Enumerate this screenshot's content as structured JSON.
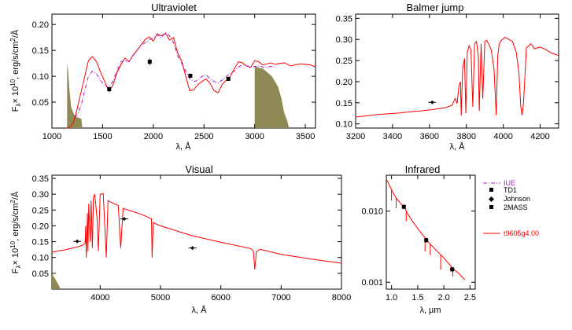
{
  "colors": {
    "model": "#ff0000",
    "iue": "#a020c0",
    "shade": "#8f8a55",
    "marker": "#000000",
    "axis": "#000000"
  },
  "chart_data": [
    {
      "id": "uv",
      "type": "line",
      "title": "Ultraviolet",
      "xlabel": "λ, Å",
      "ylabel": "F_λ × 10^10 , erg/s/cm²/Å",
      "ylabel_parts": {
        "base": "F",
        "sub": "λ",
        "mid": "× 10",
        "sup10": "10",
        "unit": ", erg/s/cm",
        "sup2": "2",
        "tail": "/Å"
      },
      "xlim": [
        1000,
        3600
      ],
      "ylim": [
        0.0,
        0.22
      ],
      "xticks": [
        1000,
        1500,
        2000,
        2500,
        3000,
        3500
      ],
      "yticks": [
        0.05,
        0.1,
        0.15,
        0.2
      ],
      "series": [
        {
          "name": "t9605g4.00",
          "style": "solid",
          "color": "#ff0000",
          "x": [
            1150,
            1180,
            1210,
            1240,
            1270,
            1300,
            1330,
            1360,
            1400,
            1440,
            1480,
            1520,
            1560,
            1600,
            1640,
            1680,
            1720,
            1760,
            1800,
            1840,
            1880,
            1920,
            1960,
            2000,
            2040,
            2080,
            2120,
            2160,
            2200,
            2240,
            2280,
            2320,
            2360,
            2400,
            2440,
            2480,
            2520,
            2560,
            2600,
            2640,
            2680,
            2720,
            2760,
            2800,
            2840,
            2880,
            2920,
            2960,
            3000,
            3040,
            3080,
            3120,
            3160,
            3200,
            3250,
            3300,
            3350,
            3400,
            3450,
            3500,
            3550,
            3600
          ],
          "y": [
            0.0,
            0.002,
            0.01,
            0.03,
            0.055,
            0.08,
            0.105,
            0.13,
            0.138,
            0.128,
            0.108,
            0.09,
            0.072,
            0.082,
            0.106,
            0.122,
            0.135,
            0.128,
            0.141,
            0.15,
            0.161,
            0.171,
            0.176,
            0.168,
            0.182,
            0.178,
            0.183,
            0.17,
            0.175,
            0.145,
            0.13,
            0.1,
            0.072,
            0.074,
            0.084,
            0.09,
            0.095,
            0.086,
            0.072,
            0.068,
            0.085,
            0.092,
            0.1,
            0.115,
            0.128,
            0.126,
            0.12,
            0.117,
            0.13,
            0.128,
            0.122,
            0.124,
            0.126,
            0.123,
            0.125,
            0.126,
            0.12,
            0.122,
            0.124,
            0.123,
            0.122,
            0.118
          ]
        },
        {
          "name": "IUE",
          "style": "dashdot",
          "color": "#a020c0",
          "x": [
            1230,
            1260,
            1290,
            1320,
            1360,
            1400,
            1440,
            1480,
            1520,
            1560,
            1600,
            1640,
            1680,
            1720,
            1760,
            1800,
            1840,
            1880,
            1920,
            1960,
            2000,
            2040,
            2080,
            2120,
            2160,
            2200,
            2240,
            2280,
            2320,
            2360,
            2400,
            2440,
            2480,
            2520,
            2560,
            2600,
            2640,
            2680,
            2720,
            2760,
            2800,
            2840,
            2880,
            2920,
            2960,
            3000,
            3040,
            3080,
            3120,
            3160,
            3200
          ],
          "y": [
            0.02,
            0.03,
            0.045,
            0.07,
            0.1,
            0.11,
            0.105,
            0.092,
            0.082,
            0.078,
            0.09,
            0.11,
            0.128,
            0.13,
            0.128,
            0.14,
            0.15,
            0.16,
            0.165,
            0.17,
            0.175,
            0.18,
            0.175,
            0.185,
            0.178,
            0.165,
            0.14,
            0.125,
            0.11,
            0.095,
            0.09,
            0.092,
            0.1,
            0.103,
            0.095,
            0.09,
            0.087,
            0.093,
            0.1,
            0.105,
            0.11,
            0.118,
            0.122,
            0.12,
            0.118,
            0.119,
            0.12,
            0.118,
            0.118,
            0.119,
            0.118
          ]
        }
      ],
      "shaded": [
        {
          "x": [
            1150,
            1160,
            1175,
            1190,
            1210,
            1230,
            1260,
            1290,
            1300
          ],
          "y": [
            0.125,
            0.11,
            0.07,
            0.04,
            0.03,
            0.022,
            0.02,
            0.018,
            0.0
          ]
        },
        {
          "x": [
            3000,
            3020,
            3050,
            3080,
            3110,
            3140,
            3170,
            3200,
            3230,
            3260,
            3290,
            3320,
            3340
          ],
          "y": [
            0.12,
            0.118,
            0.116,
            0.115,
            0.11,
            0.105,
            0.1,
            0.09,
            0.08,
            0.06,
            0.03,
            0.015,
            0.0
          ]
        }
      ],
      "points": [
        {
          "x": 1565,
          "y": 0.075,
          "err": 0.005,
          "marker": "square",
          "label": "TD1"
        },
        {
          "x": 1965,
          "y": 0.128,
          "err": 0.006,
          "marker": "square",
          "label": "TD1"
        },
        {
          "x": 2365,
          "y": 0.101,
          "err": 0.004,
          "marker": "square",
          "label": "TD1"
        },
        {
          "x": 2740,
          "y": 0.095,
          "err": 0.004,
          "marker": "square",
          "label": "TD1"
        }
      ]
    },
    {
      "id": "balmer",
      "type": "line",
      "title": "Balmer jump",
      "xlabel": "λ, Å",
      "ylabel": "",
      "xlim": [
        3200,
        4300
      ],
      "ylim": [
        0.09,
        0.36
      ],
      "xticks": [
        3200,
        3400,
        3600,
        3800,
        4000,
        4200
      ],
      "yticks": [
        0.1,
        0.15,
        0.2,
        0.25,
        0.3,
        0.35
      ],
      "series": [
        {
          "name": "t9605g4.00",
          "style": "solid",
          "color": "#ff0000",
          "x": [
            3200,
            3260,
            3320,
            3380,
            3440,
            3500,
            3560,
            3620,
            3650,
            3680,
            3710,
            3725,
            3730,
            3740,
            3750,
            3760,
            3768,
            3772,
            3780,
            3790,
            3797,
            3805,
            3815,
            3825,
            3835,
            3845,
            3855,
            3865,
            3870,
            3880,
            3889,
            3900,
            3910,
            3920,
            3935,
            3950,
            3962,
            3970,
            3978,
            3990,
            4010,
            4030,
            4050,
            4070,
            4085,
            4095,
            4102,
            4110,
            4125,
            4150,
            4170,
            4200,
            4230,
            4260,
            4300
          ],
          "y": [
            0.116,
            0.119,
            0.122,
            0.124,
            0.126,
            0.129,
            0.131,
            0.134,
            0.136,
            0.138,
            0.142,
            0.145,
            0.152,
            0.16,
            0.148,
            0.19,
            0.2,
            0.12,
            0.23,
            0.255,
            0.125,
            0.27,
            0.285,
            0.275,
            0.14,
            0.29,
            0.295,
            0.26,
            0.13,
            0.29,
            0.16,
            0.295,
            0.298,
            0.29,
            0.275,
            0.23,
            0.12,
            0.26,
            0.29,
            0.298,
            0.305,
            0.3,
            0.295,
            0.27,
            0.22,
            0.14,
            0.12,
            0.15,
            0.28,
            0.29,
            0.278,
            0.282,
            0.276,
            0.268,
            0.262
          ]
        }
      ],
      "shaded": [],
      "points": [
        {
          "x": 3615,
          "y": 0.151,
          "err": 0.002,
          "marker": "diamond",
          "label": "Johnson"
        }
      ]
    },
    {
      "id": "visual",
      "type": "line",
      "title": "Visual",
      "xlabel": "λ, Å",
      "ylabel": "F_λ × 10^10 , erg/s/cm²/Å",
      "ylabel_parts": {
        "base": "F",
        "sub": "λ",
        "mid": "× 10",
        "sup10": "10",
        "unit": ", erg/s/cm",
        "sup2": "2",
        "tail": "/Å"
      },
      "xlim": [
        3200,
        8000
      ],
      "ylim": [
        0.0,
        0.36
      ],
      "xticks": [
        4000,
        5000,
        6000,
        7000,
        8000
      ],
      "yticks": [
        0.05,
        0.1,
        0.15,
        0.2,
        0.25,
        0.3,
        0.35
      ],
      "series": [
        {
          "name": "t9605g4.00",
          "style": "solid",
          "color": "#ff0000",
          "x": [
            3200,
            3400,
            3600,
            3700,
            3750,
            3760,
            3770,
            3790,
            3797,
            3810,
            3835,
            3850,
            3870,
            3889,
            3910,
            3950,
            3970,
            4000,
            4050,
            4101,
            4130,
            4200,
            4300,
            4340,
            4380,
            4500,
            4700,
            4850,
            4861,
            4880,
            5000,
            5500,
            6000,
            6500,
            6540,
            6563,
            6590,
            6650,
            7000,
            7500,
            8000
          ],
          "y": [
            0.117,
            0.124,
            0.132,
            0.138,
            0.145,
            0.2,
            0.1,
            0.24,
            0.12,
            0.27,
            0.15,
            0.28,
            0.13,
            0.29,
            0.3,
            0.22,
            0.12,
            0.3,
            0.302,
            0.1,
            0.28,
            0.272,
            0.265,
            0.13,
            0.255,
            0.248,
            0.235,
            0.222,
            0.1,
            0.21,
            0.2,
            0.17,
            0.148,
            0.128,
            0.12,
            0.062,
            0.118,
            0.126,
            0.11,
            0.095,
            0.082
          ]
        }
      ],
      "shaded": [
        {
          "x": [
            3200,
            3230,
            3260,
            3290,
            3320,
            3340
          ],
          "y": [
            0.05,
            0.04,
            0.03,
            0.02,
            0.01,
            0.0
          ]
        }
      ],
      "points": [
        {
          "x": 3620,
          "y": 0.151,
          "err": 0.003,
          "marker": "diamond",
          "label": "Johnson"
        },
        {
          "x": 4400,
          "y": 0.222,
          "err": 0.003,
          "marker": "diamond",
          "label": "Johnson"
        },
        {
          "x": 5530,
          "y": 0.13,
          "err": 0.002,
          "marker": "diamond",
          "label": "Johnson"
        }
      ]
    },
    {
      "id": "infrared",
      "type": "line",
      "title": "Infrared",
      "xlabel": "λ, µm",
      "ylabel": "",
      "yscale": "log",
      "xlim": [
        0.9,
        2.6
      ],
      "ylim": [
        0.0008,
        0.032
      ],
      "xticks": [
        1.0,
        1.5,
        2.0,
        2.5
      ],
      "xticklabels": [
        "1.0",
        "1.5",
        "2.0",
        "2.5"
      ],
      "yticks": [
        0.001,
        0.01
      ],
      "yticklabels": [
        "0.001",
        "0.010"
      ],
      "series": [
        {
          "name": "t9605g4.00",
          "style": "solid",
          "color": "#ff0000",
          "x": [
            0.9,
            0.95,
            1.0,
            1.05,
            1.1,
            1.15,
            1.2,
            1.25,
            1.3,
            1.35,
            1.4,
            1.45,
            1.5,
            1.6,
            1.7,
            1.8,
            1.9,
            2.0,
            2.1,
            2.2,
            2.3,
            2.4
          ],
          "y": [
            0.028,
            0.024,
            0.02,
            0.017,
            0.015,
            0.0135,
            0.0122,
            0.0112,
            0.0094,
            0.0082,
            0.0072,
            0.0064,
            0.0057,
            0.0046,
            0.0037,
            0.0031,
            0.0026,
            0.0022,
            0.0018,
            0.0015,
            0.0013,
            0.00108
          ]
        }
      ],
      "shaded": [],
      "spikes": [
        {
          "x": 1.0,
          "y": 0.014
        },
        {
          "x": 1.09,
          "y": 0.011
        },
        {
          "x": 1.28,
          "y": 0.0072
        },
        {
          "x": 1.64,
          "y": 0.0027
        },
        {
          "x": 1.74,
          "y": 0.0024
        },
        {
          "x": 1.94,
          "y": 0.0015
        },
        {
          "x": 2.17,
          "y": 0.0012
        }
      ],
      "points": [
        {
          "x": 1.235,
          "y": 0.0115,
          "err": 0.0008,
          "marker": "square",
          "label": "2MASS"
        },
        {
          "x": 1.662,
          "y": 0.0039,
          "err": 0.0003,
          "marker": "square",
          "label": "2MASS"
        },
        {
          "x": 2.159,
          "y": 0.00152,
          "err": 0.0001,
          "marker": "square",
          "label": "2MASS"
        }
      ]
    }
  ],
  "legend": {
    "entries": [
      {
        "label": "IUE",
        "kind": "dashdot",
        "color": "#a020c0"
      },
      {
        "label": "TD1",
        "kind": "square",
        "color": "#000000"
      },
      {
        "label": "Johnson",
        "kind": "diamond",
        "color": "#000000"
      },
      {
        "label": "2MASS",
        "kind": "square",
        "color": "#000000"
      }
    ],
    "model": {
      "label": "t9605g4.00",
      "kind": "line",
      "color": "#ff0000"
    }
  }
}
